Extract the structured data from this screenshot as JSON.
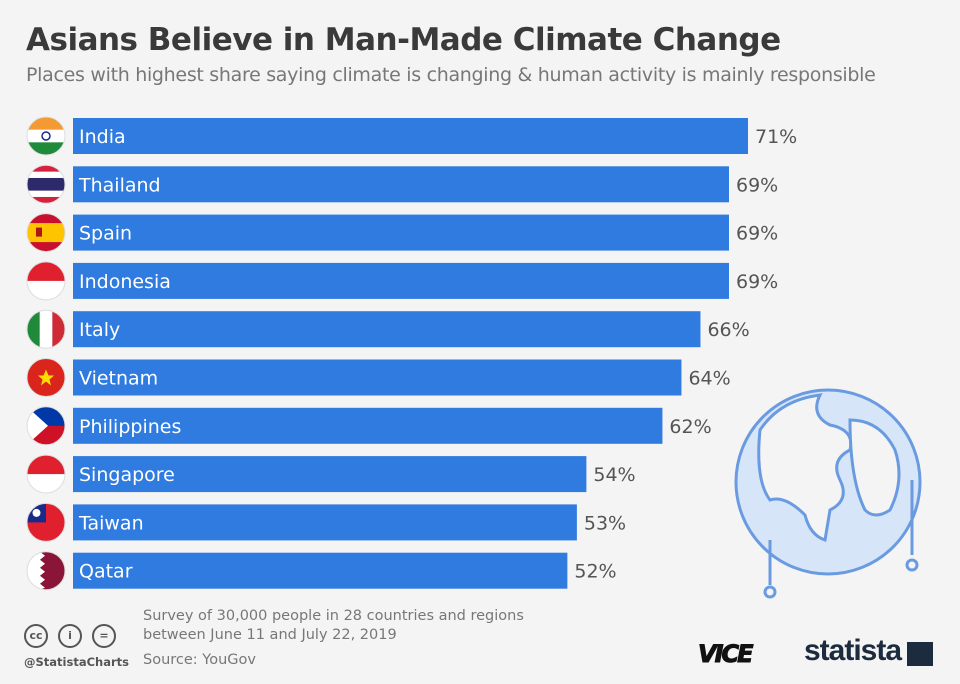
{
  "title": "Asians Believe in Man-Made Climate Change",
  "subtitle": "Places with highest share saying climate is changing & human activity is mainly responsible",
  "chart_data": {
    "type": "bar",
    "orientation": "horizontal",
    "categories": [
      "India",
      "Thailand",
      "Spain",
      "Indonesia",
      "Italy",
      "Vietnam",
      "Philippines",
      "Singapore",
      "Taiwan",
      "Qatar"
    ],
    "values": [
      71,
      69,
      69,
      69,
      66,
      64,
      62,
      54,
      53,
      52
    ],
    "value_labels": [
      "71%",
      "69%",
      "69%",
      "69%",
      "66%",
      "64%",
      "62%",
      "54%",
      "53%",
      "52%"
    ],
    "unit": "%",
    "bar_color": "#2f7be0",
    "grid": false,
    "flags": [
      "india-flag-icon",
      "thailand-flag-icon",
      "spain-flag-icon",
      "indonesia-flag-icon",
      "italy-flag-icon",
      "vietnam-flag-icon",
      "philippines-flag-icon",
      "singapore-flag-icon",
      "taiwan-flag-icon",
      "qatar-flag-icon"
    ]
  },
  "footer": {
    "note_line1": "Survey of 30,000 people in 28 countries and regions",
    "note_line2": "between June 11 and July 22, 2019",
    "source": "Source: YouGov",
    "handle": "@StatistaCharts",
    "cc_labels": [
      "cc",
      "i",
      "="
    ],
    "logo_vice": "VICE",
    "logo_statista": "statista"
  }
}
